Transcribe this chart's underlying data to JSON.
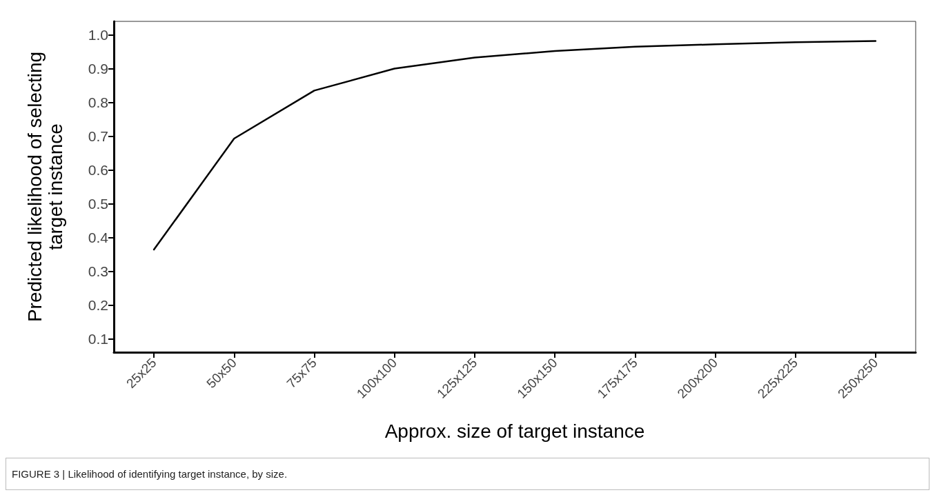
{
  "chart_data": {
    "type": "line",
    "xlabel": "Approx. size of target instance",
    "ylabel": "Predicted likelihood of selecting\ntarget instance",
    "categories": [
      "25x25",
      "50x50",
      "75x75",
      "100x100",
      "125x125",
      "150x150",
      "175x175",
      "200x200",
      "225x225",
      "250x250"
    ],
    "series": [
      {
        "color": "#000000",
        "values": [
          0.364,
          0.693,
          0.835,
          0.9,
          0.933,
          0.952,
          0.965,
          0.972,
          0.978,
          0.982
        ]
      }
    ],
    "ylim": [
      0.06,
      1.04
    ],
    "yticks": [
      0.1,
      0.2,
      0.3,
      0.4,
      0.5,
      0.6,
      0.7,
      0.8,
      0.9,
      {
        "value": 1,
        "label": "1.0"
      }
    ],
    "marker": "none",
    "line_style": "solid",
    "annotations": [
      "FIGURE 3 | Likelihood of identifying target instance, by size."
    ]
  }
}
